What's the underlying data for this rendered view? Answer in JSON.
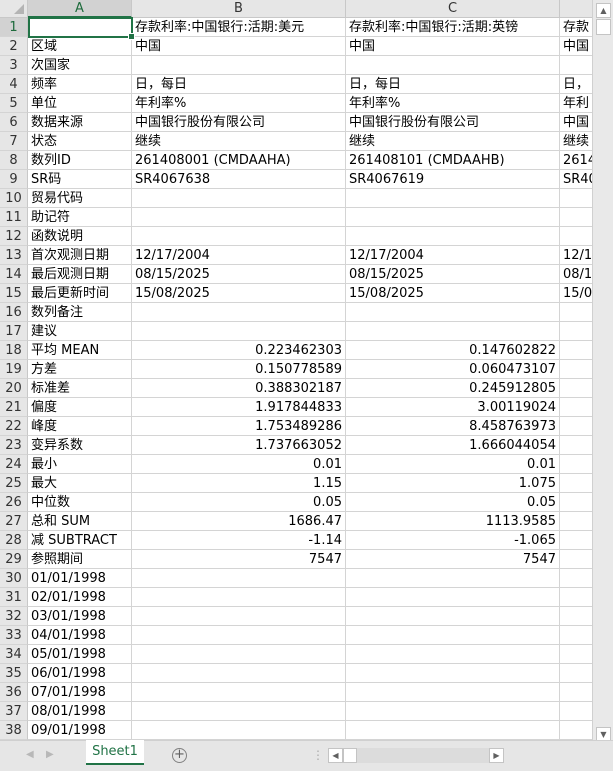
{
  "columns": [
    "A",
    "B",
    "C",
    ""
  ],
  "selected_cell": "A1",
  "rows": [
    [
      "",
      "存款利率:中国银行:活期:美元",
      "存款利率:中国银行:活期:英镑",
      "存款"
    ],
    [
      "区域",
      "中国",
      "中国",
      "中国"
    ],
    [
      "次国家",
      "",
      "",
      ""
    ],
    [
      "频率",
      "日，每日",
      "日，每日",
      "日，"
    ],
    [
      "单位",
      "年利率%",
      "年利率%",
      "年利"
    ],
    [
      "数据来源",
      "中国银行股份有限公司",
      "中国银行股份有限公司",
      "中国"
    ],
    [
      "状态",
      "继续",
      "继续",
      "继续"
    ],
    [
      "数列ID",
      "261408001 (CMDAAHA)",
      "261408101 (CMDAAHB)",
      "2614"
    ],
    [
      "SR码",
      "SR4067638",
      "SR4067619",
      "SR40"
    ],
    [
      "贸易代码",
      "",
      "",
      ""
    ],
    [
      "助记符",
      "",
      "",
      ""
    ],
    [
      "函数说明",
      "",
      "",
      ""
    ],
    [
      "首次观测日期",
      "12/17/2004",
      "12/17/2004",
      "12/1"
    ],
    [
      "最后观测日期",
      "08/15/2025",
      "08/15/2025",
      "08/1"
    ],
    [
      "最后更新时间",
      "15/08/2025",
      "15/08/2025",
      "15/0"
    ],
    [
      "数列备注",
      "",
      "",
      ""
    ],
    [
      "建议",
      "",
      "",
      ""
    ],
    [
      "平均 MEAN",
      "0.223462303",
      "0.147602822",
      ""
    ],
    [
      "方差",
      "0.150778589",
      "0.060473107",
      ""
    ],
    [
      "标准差",
      "0.388302187",
      "0.245912805",
      ""
    ],
    [
      "偏度",
      "1.917844833",
      "3.00119024",
      ""
    ],
    [
      "峰度",
      "1.753489286",
      "8.458763973",
      ""
    ],
    [
      "变异系数",
      "1.737663052",
      "1.666044054",
      ""
    ],
    [
      "最小",
      "0.01",
      "0.01",
      ""
    ],
    [
      "最大",
      "1.15",
      "1.075",
      ""
    ],
    [
      "中位数",
      "0.05",
      "0.05",
      ""
    ],
    [
      "总和 SUM",
      "1686.47",
      "1113.9585",
      ""
    ],
    [
      "减 SUBTRACT",
      "-1.14",
      "-1.065",
      ""
    ],
    [
      "参照期间",
      "7547",
      "7547",
      ""
    ],
    [
      "01/01/1998",
      "",
      "",
      ""
    ],
    [
      "02/01/1998",
      "",
      "",
      ""
    ],
    [
      "03/01/1998",
      "",
      "",
      ""
    ],
    [
      "04/01/1998",
      "",
      "",
      ""
    ],
    [
      "05/01/1998",
      "",
      "",
      ""
    ],
    [
      "06/01/1998",
      "",
      "",
      ""
    ],
    [
      "07/01/1998",
      "",
      "",
      ""
    ],
    [
      "08/01/1998",
      "",
      "",
      ""
    ],
    [
      "09/01/1998",
      "",
      "",
      ""
    ]
  ],
  "sheet_tabs": [
    "Sheet1"
  ],
  "add_sheet_icon": "plus-circle-icon",
  "accent_color": "#217346"
}
